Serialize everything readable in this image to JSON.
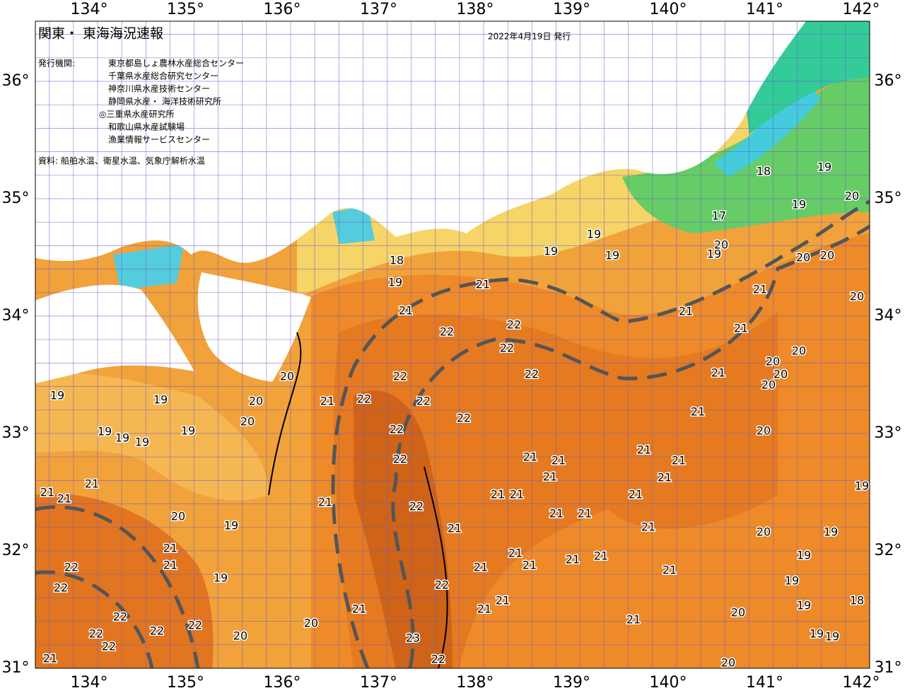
{
  "header": {
    "title": "関東・ 東海海況速報",
    "date": "2022年4月19日 発行"
  },
  "publisher": {
    "label": "発行機関:",
    "organizations": [
      "東京都島しょ農林水産総合センター",
      "千葉県水産総合研究センター",
      "神奈川県水産技術センター",
      "静岡県水産・ 海洋技術研究所",
      "◎三重県水産研究所",
      "和歌山県水産試験場",
      "漁業情報サービスセンター"
    ]
  },
  "source": "資料: 船舶水温、衛星水温、気象庁解析水温",
  "map": {
    "longitude_labels": [
      "134°",
      "135°",
      "136°",
      "137°",
      "138°",
      "139°",
      "140°",
      "141°",
      "142°"
    ],
    "latitude_labels": [
      "36°",
      "35°",
      "34°",
      "33°",
      "32°",
      "31°"
    ],
    "temperature_labels": [
      22,
      22,
      22,
      22,
      22,
      22,
      22,
      22,
      22,
      22,
      22,
      22,
      23,
      22,
      21,
      21,
      21,
      21,
      21,
      21,
      21,
      21,
      21,
      21,
      21,
      21,
      21,
      21,
      21,
      21,
      21,
      21,
      21,
      21,
      21,
      21,
      21,
      21,
      21,
      21,
      21,
      21,
      21,
      21,
      21,
      21,
      20,
      20,
      20,
      20,
      20,
      20,
      20,
      20,
      20,
      20,
      20,
      20,
      20,
      20,
      20,
      20,
      20,
      20,
      19,
      19,
      19,
      19,
      19,
      19,
      19,
      18,
      18,
      17,
      19,
      19,
      19,
      19,
      19,
      19,
      19,
      19,
      19,
      19,
      19,
      19,
      19,
      19,
      19,
      18,
      21,
      21,
      21,
      21,
      21,
      22,
      22,
      22,
      22,
      22,
      22,
      22,
      21,
      20
    ]
  }
}
